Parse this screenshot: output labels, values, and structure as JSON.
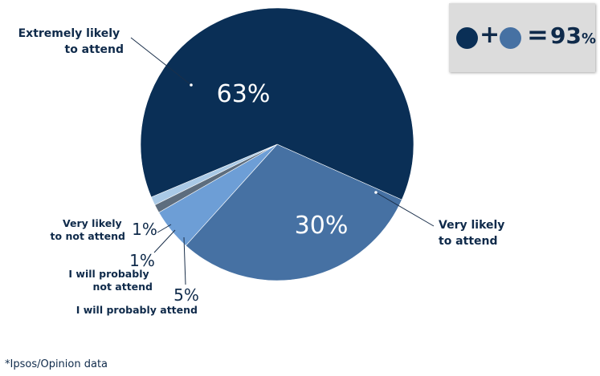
{
  "chart_data": {
    "type": "pie",
    "slices": [
      {
        "label": "Extremely likely to attend",
        "label_lines": [
          "Extremely likely",
          "to attend"
        ],
        "value": 63,
        "display": "63%",
        "color": "#0a2f56"
      },
      {
        "label": "Very likely to attend",
        "label_lines": [
          "Very likely",
          "to attend"
        ],
        "value": 30,
        "display": "30%",
        "color": "#4671a3"
      },
      {
        "label": "I will probably attend",
        "label_lines": [
          "I will probably attend"
        ],
        "value": 5,
        "display": "5%",
        "color": "#6d9ed6"
      },
      {
        "label": "I will probably not attend",
        "label_lines": [
          "I will probably",
          "not attend"
        ],
        "value": 1,
        "display": "1%",
        "color": "#5d6d7e"
      },
      {
        "label": "Very likely to not attend",
        "label_lines": [
          "Very likely",
          "to not attend"
        ],
        "value": 1,
        "display": "1%",
        "color": "#a9c9e6"
      }
    ]
  },
  "summary": {
    "plus": "+",
    "equals": "=",
    "total": "93",
    "total_unit": "%",
    "dot_colors": [
      "#0a2f56",
      "#4671a3"
    ]
  },
  "footnote": "*Ipsos/Opinion data"
}
